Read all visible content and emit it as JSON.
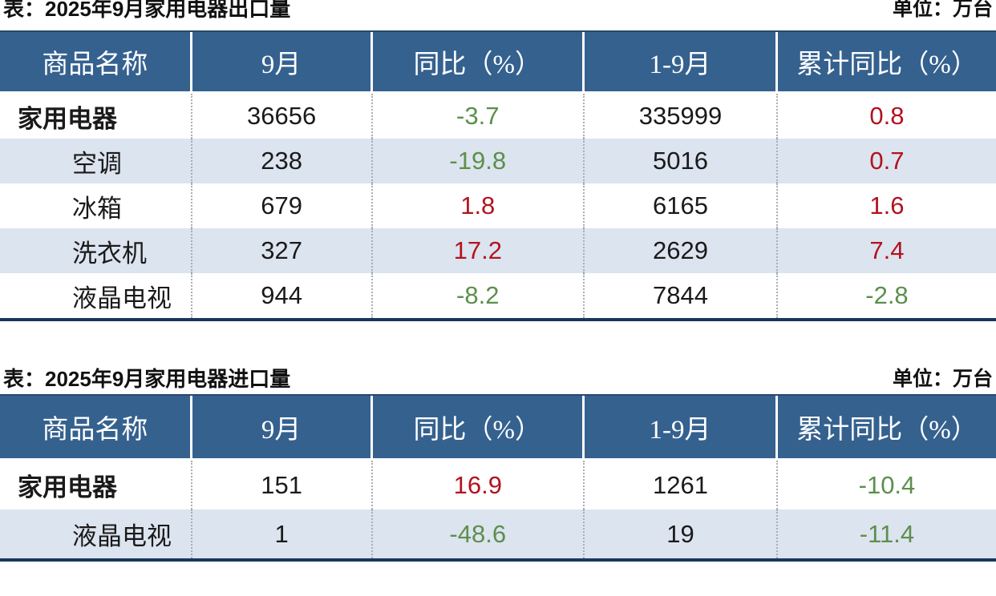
{
  "page": {
    "colors": {
      "header_bg": "#35618f",
      "row_alt_bg": "#dce4ef",
      "positive": "#b2131f",
      "negative": "#5c8f4c",
      "border_navy": "#17375e"
    },
    "tables": [
      {
        "title": "表：2025年9月家用电器出口量",
        "unit": "单位：万台",
        "columns": [
          "商品名称",
          "9月",
          "同比（%）",
          "1-9月",
          "累计同比（%）"
        ],
        "rows": [
          {
            "name": "家用电器",
            "cells": [
              {
                "v": "36656",
                "c": "plain"
              },
              {
                "v": "-3.7",
                "c": "neg"
              },
              {
                "v": "335999",
                "c": "plain"
              },
              {
                "v": "0.8",
                "c": "pos"
              }
            ]
          },
          {
            "name": "空调",
            "cells": [
              {
                "v": "238",
                "c": "plain"
              },
              {
                "v": "-19.8",
                "c": "neg"
              },
              {
                "v": "5016",
                "c": "plain"
              },
              {
                "v": "0.7",
                "c": "pos"
              }
            ]
          },
          {
            "name": "冰箱",
            "cells": [
              {
                "v": "679",
                "c": "plain"
              },
              {
                "v": "1.8",
                "c": "pos"
              },
              {
                "v": "6165",
                "c": "plain"
              },
              {
                "v": "1.6",
                "c": "pos"
              }
            ]
          },
          {
            "name": "洗衣机",
            "cells": [
              {
                "v": "327",
                "c": "plain"
              },
              {
                "v": "17.2",
                "c": "pos"
              },
              {
                "v": "2629",
                "c": "plain"
              },
              {
                "v": "7.4",
                "c": "pos"
              }
            ]
          },
          {
            "name": "液晶电视",
            "cells": [
              {
                "v": "944",
                "c": "plain"
              },
              {
                "v": "-8.2",
                "c": "neg"
              },
              {
                "v": "7844",
                "c": "plain"
              },
              {
                "v": "-2.8",
                "c": "neg"
              }
            ]
          }
        ]
      },
      {
        "title": "表：2025年9月家用电器进口量",
        "unit": "单位：万台",
        "columns": [
          "商品名称",
          "9月",
          "同比（%）",
          "1-9月",
          "累计同比（%）"
        ],
        "rows": [
          {
            "name": "家用电器",
            "cells": [
              {
                "v": "151",
                "c": "plain"
              },
              {
                "v": "16.9",
                "c": "pos"
              },
              {
                "v": "1261",
                "c": "plain"
              },
              {
                "v": "-10.4",
                "c": "neg"
              }
            ]
          },
          {
            "name": "液晶电视",
            "cells": [
              {
                "v": "1",
                "c": "plain"
              },
              {
                "v": "-48.6",
                "c": "neg"
              },
              {
                "v": "19",
                "c": "plain"
              },
              {
                "v": "-11.4",
                "c": "neg"
              }
            ]
          }
        ]
      }
    ]
  }
}
